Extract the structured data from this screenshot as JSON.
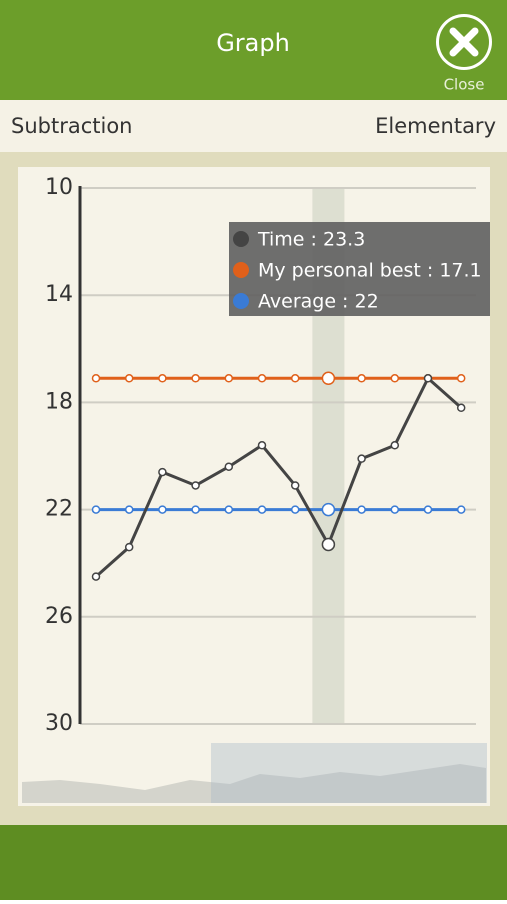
{
  "header": {
    "title": "Graph",
    "close": "Close"
  },
  "subheader": {
    "left": "Subtraction",
    "right": "Elementary"
  },
  "chart_data": {
    "type": "line",
    "categories": [
      null,
      null,
      null,
      null,
      null,
      null,
      null,
      null,
      null,
      null,
      null,
      null
    ],
    "series": [
      {
        "color": "#444444",
        "values": [
          24.5,
          23.4,
          20.6,
          21.1,
          20.4,
          19.6,
          21.1,
          23.3,
          20.1,
          19.6,
          17.1,
          18.2
        ]
      },
      {
        "color": "#e0601a",
        "values": [
          17.1,
          17.1,
          17.1,
          17.1,
          17.1,
          17.1,
          17.1,
          17.1,
          17.1,
          17.1,
          17.1,
          17.1
        ]
      },
      {
        "color": "#3a7bd5",
        "values": [
          22,
          22,
          22,
          22,
          22,
          22,
          22,
          22,
          22,
          22,
          22,
          22
        ]
      }
    ],
    "ylim": [
      30,
      10
    ],
    "yticks": [
      10,
      14,
      18,
      22,
      26,
      30
    ],
    "grid": true,
    "highlight_index": 7,
    "tooltip": [
      "Time : 23.3",
      "My personal best : 17.1",
      "Average : 22"
    ]
  }
}
